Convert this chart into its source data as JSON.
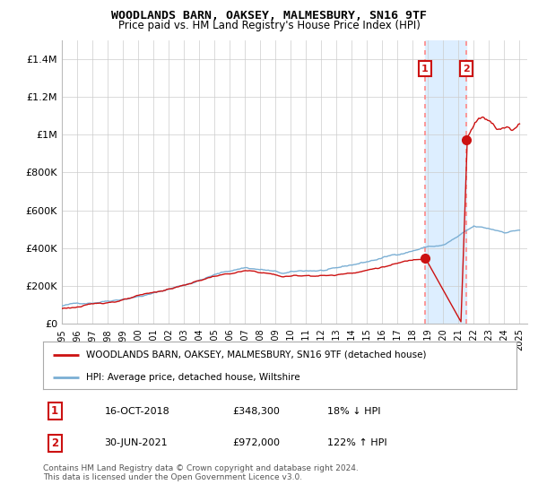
{
  "title": "WOODLANDS BARN, OAKSEY, MALMESBURY, SN16 9TF",
  "subtitle": "Price paid vs. HM Land Registry's House Price Index (HPI)",
  "ylim": [
    0,
    1500000
  ],
  "yticks": [
    0,
    200000,
    400000,
    600000,
    800000,
    1000000,
    1200000,
    1400000
  ],
  "ytick_labels": [
    "£0",
    "£200K",
    "£400K",
    "£600K",
    "£800K",
    "£1M",
    "£1.2M",
    "£1.4M"
  ],
  "xlim_start": 1995.0,
  "xlim_end": 2025.5,
  "xtick_years": [
    1995,
    1996,
    1997,
    1998,
    1999,
    2000,
    2001,
    2002,
    2003,
    2004,
    2005,
    2006,
    2007,
    2008,
    2009,
    2010,
    2011,
    2012,
    2013,
    2014,
    2015,
    2016,
    2017,
    2018,
    2019,
    2020,
    2021,
    2022,
    2023,
    2024,
    2025
  ],
  "hpi_color": "#7BAFD4",
  "price_color": "#CC1111",
  "sale1_x": 2018.79,
  "sale1_y": 348300,
  "sale2_x": 2021.5,
  "sale2_y": 972000,
  "vline_color": "#FF8888",
  "highlight_fill": "#DDEEFF",
  "legend_label_red": "WOODLANDS BARN, OAKSEY, MALMESBURY, SN16 9TF (detached house)",
  "legend_label_blue": "HPI: Average price, detached house, Wiltshire",
  "table_row1": [
    "1",
    "16-OCT-2018",
    "£348,300",
    "18% ↓ HPI"
  ],
  "table_row2": [
    "2",
    "30-JUN-2021",
    "£972,000",
    "122% ↑ HPI"
  ],
  "footnote": "Contains HM Land Registry data © Crown copyright and database right 2024.\nThis data is licensed under the Open Government Licence v3.0.",
  "background_color": "#FFFFFF",
  "grid_color": "#CCCCCC",
  "box_color": "#CC1111"
}
